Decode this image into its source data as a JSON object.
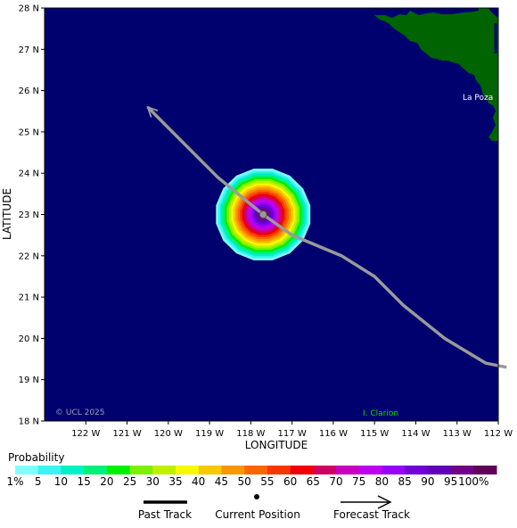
{
  "map": {
    "background_color": "#00006e",
    "land_color": "#006400",
    "copyright": "© UCL 2025",
    "place_labels": [
      {
        "name": "La Poza",
        "color": "#ffffff"
      },
      {
        "name": "I. Clarion",
        "color": "#00e000"
      }
    ],
    "lat_ticks": [
      "28 N",
      "27 N",
      "26 N",
      "25 N",
      "24 N",
      "23 N",
      "22 N",
      "21 N",
      "20 N",
      "19 N",
      "18 N"
    ],
    "lon_ticks": [
      "122 W",
      "121 W",
      "120 W",
      "119 W",
      "118 W",
      "117 W",
      "116 W",
      "115 W",
      "114 W",
      "113 W",
      "112 W"
    ],
    "xlabel": "LONGITUDE",
    "ylabel": "LATITUDE",
    "lat_range": [
      18,
      28
    ],
    "lon_range": [
      -123,
      -112
    ],
    "current_position": {
      "lon": -117.7,
      "lat": 23.0
    },
    "track": [
      {
        "lon": -111.8,
        "lat": 19.3
      },
      {
        "lon": -112.3,
        "lat": 19.4
      },
      {
        "lon": -113.3,
        "lat": 20.0
      },
      {
        "lon": -114.3,
        "lat": 20.8
      },
      {
        "lon": -115.0,
        "lat": 21.5
      },
      {
        "lon": -115.8,
        "lat": 22.0
      },
      {
        "lon": -117.0,
        "lat": 22.5
      },
      {
        "lon": -117.7,
        "lat": 23.0
      },
      {
        "lon": -118.8,
        "lat": 23.9
      },
      {
        "lon": -119.9,
        "lat": 25.0
      },
      {
        "lon": -120.5,
        "lat": 25.6
      }
    ],
    "track_color": "#9a9a9a"
  },
  "legend": {
    "title": "Probability",
    "labels": [
      "1%",
      "5",
      "10",
      "15",
      "20",
      "25",
      "30",
      "35",
      "40",
      "45",
      "50",
      "55",
      "60",
      "65",
      "70",
      "75",
      "80",
      "85",
      "90",
      "95",
      "100%"
    ],
    "colors": [
      "#80ffff",
      "#3cf2f2",
      "#00f0c8",
      "#00f07a",
      "#00f000",
      "#7cf000",
      "#c0f000",
      "#f8f800",
      "#f8c800",
      "#f89800",
      "#f86800",
      "#f83800",
      "#f00000",
      "#d00060",
      "#c800c0",
      "#c000f0",
      "#9800f8",
      "#7000d8",
      "#6000b8",
      "#700088",
      "#600058"
    ],
    "past_track_label": "Past Track",
    "current_position_label": "Current Position",
    "forecast_track_label": "Forecast Track"
  }
}
